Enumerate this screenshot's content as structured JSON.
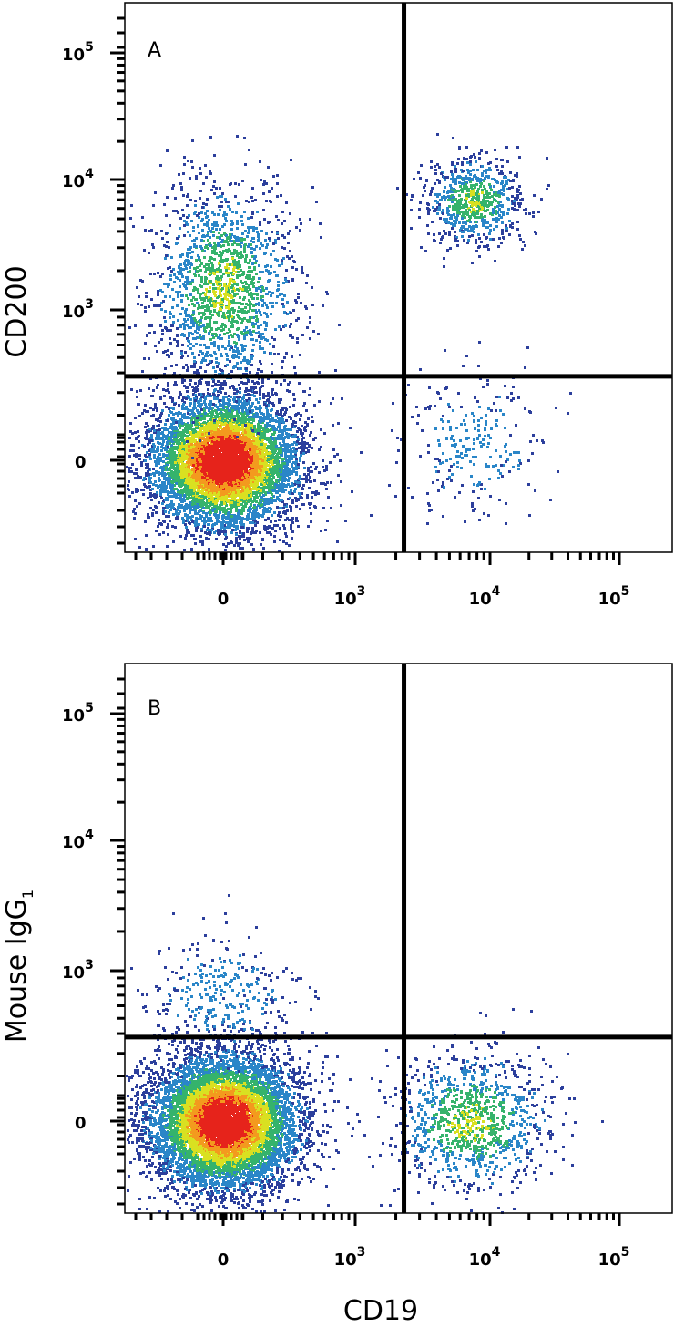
{
  "chart_data": [
    {
      "type": "scatter",
      "panel_label": "A",
      "xlabel": "",
      "ylabel": "CD200",
      "x_ticks": [
        "0",
        "10",
        "10",
        "10"
      ],
      "x_tick_exponents": [
        "",
        "3",
        "4",
        "5"
      ],
      "y_ticks": [
        "0",
        "10",
        "10",
        "10"
      ],
      "y_tick_exponents": [
        "",
        "3",
        "4",
        "5"
      ],
      "scale": "biexponential",
      "quadrant_gate": {
        "x": 2300,
        "y": 380
      },
      "populations": [
        {
          "name": "",
          "x_center": 0,
          "y_center": 0,
          "count": 6500,
          "density": "high"
        },
        {
          "name": "",
          "x_center": 0,
          "y_center": 1500,
          "count": 1600,
          "density": "medium"
        },
        {
          "name": "",
          "x_center": 7500,
          "y_center": 7000,
          "count": 700,
          "density": "medium"
        },
        {
          "name": "",
          "x_center": 7500,
          "y_center": 80,
          "count": 260,
          "density": "low"
        }
      ]
    },
    {
      "type": "scatter",
      "panel_label": "B",
      "xlabel": "CD19",
      "ylabel": "Mouse IgG",
      "ylabel_subscript": "1",
      "x_ticks": [
        "0",
        "10",
        "10",
        "10"
      ],
      "x_tick_exponents": [
        "",
        "3",
        "4",
        "5"
      ],
      "y_ticks": [
        "0",
        "10",
        "10",
        "10"
      ],
      "y_tick_exponents": [
        "",
        "3",
        "4",
        "5"
      ],
      "scale": "biexponential",
      "quadrant_gate": {
        "x": 2300,
        "y": 380
      },
      "populations": [
        {
          "name": "",
          "x_center": 0,
          "y_center": 0,
          "count": 7500,
          "density": "high"
        },
        {
          "name": "",
          "x_center": 0,
          "y_center": 700,
          "count": 320,
          "density": "low"
        },
        {
          "name": "",
          "x_center": 7000,
          "y_center": 0,
          "count": 1100,
          "density": "medium"
        }
      ]
    }
  ],
  "colors": {
    "low": "#2c3f9c",
    "mid_low": "#2a86c8",
    "mid": "#35b36c",
    "mid_high": "#d9e021",
    "high": "#f39a1e",
    "peak": "#e6231b",
    "axis": "#000000"
  }
}
